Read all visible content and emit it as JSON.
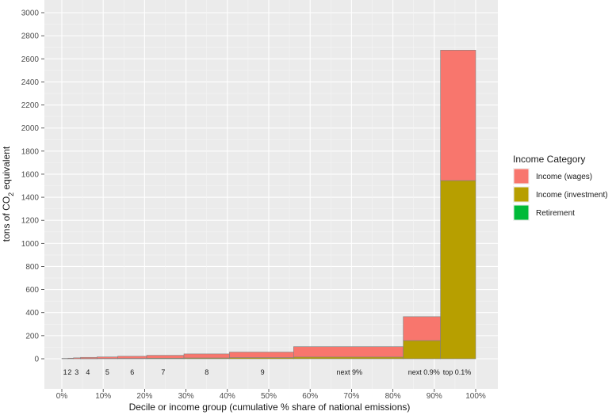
{
  "chart_data": {
    "type": "bar",
    "subtype": "variable-width stacked bar (bar width = cumulative % share of national emissions)",
    "xlabel": "Decile or income group (cumulative % share of national emissions)",
    "ylabel_prefix": "tons of CO",
    "ylabel_sub": "2",
    "ylabel_suffix": " equivalent",
    "xlim": [
      0,
      100
    ],
    "ylim": [
      0,
      3000
    ],
    "x_ticks": [
      0,
      10,
      20,
      30,
      40,
      50,
      60,
      70,
      80,
      90,
      100
    ],
    "x_tick_labels": [
      "0%",
      "10%",
      "20%",
      "30%",
      "40%",
      "50%",
      "60%",
      "70%",
      "80%",
      "90%",
      "100%"
    ],
    "y_ticks": [
      0,
      200,
      400,
      600,
      800,
      1000,
      1200,
      1400,
      1600,
      1800,
      2000,
      2200,
      2400,
      2600,
      2800,
      3000
    ],
    "grid": true,
    "legend_position": "right",
    "legend_title": "Income Category",
    "series": [
      {
        "name": "Income (wages)",
        "color": "#F8766D"
      },
      {
        "name": "Income (investment)",
        "color": "#B79F00"
      },
      {
        "name": "Retirement",
        "color": "#00BA38"
      }
    ],
    "groups": [
      {
        "label": "1",
        "label_pos": 0.8,
        "x_start": 0.0,
        "x_end": 1.5,
        "investment": 0,
        "wages": 3,
        "retirement": 0
      },
      {
        "label": "2",
        "label_pos": 1.9,
        "x_start": 1.5,
        "x_end": 2.8,
        "investment": 0,
        "wages": 5,
        "retirement": 0
      },
      {
        "label": "3",
        "label_pos": 3.6,
        "x_start": 2.8,
        "x_end": 4.5,
        "investment": 0,
        "wages": 8,
        "retirement": 0
      },
      {
        "label": "4",
        "label_pos": 6.3,
        "x_start": 4.5,
        "x_end": 8.5,
        "investment": 1,
        "wages": 11,
        "retirement": 0
      },
      {
        "label": "5",
        "label_pos": 11.0,
        "x_start": 8.5,
        "x_end": 13.5,
        "investment": 2,
        "wages": 14,
        "retirement": 0
      },
      {
        "label": "6",
        "label_pos": 17.0,
        "x_start": 13.5,
        "x_end": 20.5,
        "investment": 3,
        "wages": 19,
        "retirement": 0
      },
      {
        "label": "7",
        "label_pos": 24.5,
        "x_start": 20.5,
        "x_end": 29.5,
        "investment": 5,
        "wages": 25,
        "retirement": 0
      },
      {
        "label": "8",
        "label_pos": 35.0,
        "x_start": 29.5,
        "x_end": 40.5,
        "investment": 7,
        "wages": 35,
        "retirement": 0
      },
      {
        "label": "9",
        "label_pos": 48.5,
        "x_start": 40.5,
        "x_end": 56.0,
        "investment": 10,
        "wages": 48,
        "retirement": 0
      },
      {
        "label": "next 9%",
        "label_pos": 69.5,
        "x_start": 56.0,
        "x_end": 82.5,
        "investment": 15,
        "wages": 90,
        "retirement": 0
      },
      {
        "label": "next 0.9%",
        "label_pos": 87.5,
        "x_start": 82.5,
        "x_end": 91.5,
        "investment": 158,
        "wages": 207,
        "retirement": 0
      },
      {
        "label": "top 0.1%",
        "label_pos": 95.5,
        "x_start": 91.5,
        "x_end": 100.0,
        "investment": 1545,
        "wages": 1130,
        "retirement": 0
      }
    ]
  }
}
